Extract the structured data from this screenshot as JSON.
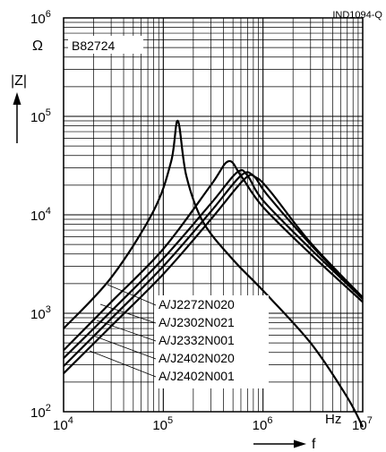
{
  "chart_data": {
    "type": "line",
    "code": "IND1094-Q",
    "series_label": "B82724",
    "y_axis": {
      "name": "|Z|",
      "unit": "Ω",
      "scale": "log",
      "range": [
        100,
        1000000
      ],
      "ticks": [
        {
          "base": "10",
          "exp": "2",
          "value": 100
        },
        {
          "base": "10",
          "exp": "3",
          "value": 1000
        },
        {
          "base": "10",
          "exp": "4",
          "value": 10000
        },
        {
          "base": "10",
          "exp": "5",
          "value": 100000
        },
        {
          "base": "10",
          "exp": "6",
          "value": 1000000
        }
      ]
    },
    "x_axis": {
      "name": "f",
      "unit": "Hz",
      "scale": "log",
      "range": [
        10000,
        10000000
      ],
      "ticks": [
        {
          "base": "10",
          "exp": "4",
          "value": 10000
        },
        {
          "base": "10",
          "exp": "5",
          "value": 100000
        },
        {
          "base": "10",
          "exp": "6",
          "value": 1000000
        },
        {
          "base": "10",
          "exp": "7",
          "value": 10000000
        }
      ]
    },
    "grid": true,
    "series": [
      {
        "name": "A/J2272N020",
        "x": [
          10000,
          30000,
          80000,
          120000,
          140000,
          170000,
          250000,
          500000,
          1000000,
          3000000,
          7000000,
          10000000
        ],
        "y": [
          700,
          2300,
          11000,
          35000,
          90000,
          25000,
          8500,
          3500,
          1700,
          500,
          140,
          70
        ]
      },
      {
        "name": "A/J2302N021",
        "x": [
          10000,
          30000,
          100000,
          300000,
          450000,
          600000,
          1000000,
          3000000,
          10000000
        ],
        "y": [
          420,
          1300,
          4500,
          20000,
          35000,
          25000,
          12000,
          4000,
          1300
        ]
      },
      {
        "name": "A/J2332N001",
        "x": [
          10000,
          30000,
          100000,
          300000,
          550000,
          700000,
          1000000,
          3000000,
          10000000
        ],
        "y": [
          350,
          1050,
          3600,
          13000,
          27000,
          25000,
          14000,
          4500,
          1400
        ]
      },
      {
        "name": "A/J2402N020",
        "x": [
          10000,
          30000,
          100000,
          300000,
          600000,
          800000,
          1100000,
          3000000,
          10000000
        ],
        "y": [
          290,
          880,
          3000,
          10800,
          25000,
          25000,
          16000,
          5000,
          1400
        ]
      },
      {
        "name": "A/J2402N001",
        "x": [
          10000,
          30000,
          100000,
          300000,
          650000,
          850000,
          1200000,
          3000000,
          10000000
        ],
        "y": [
          245,
          740,
          2500,
          9000,
          23000,
          24000,
          17000,
          5200,
          1450
        ]
      }
    ]
  }
}
